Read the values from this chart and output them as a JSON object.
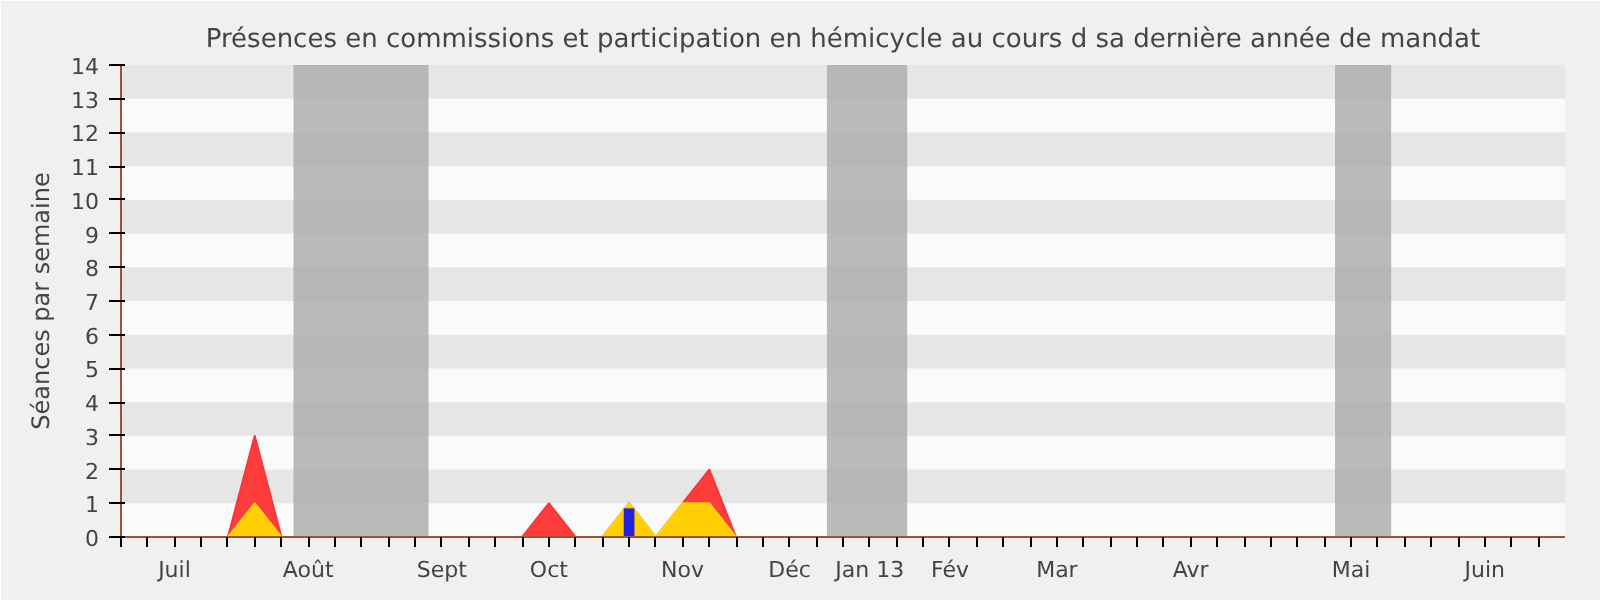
{
  "chart_data": {
    "type": "area",
    "title": "Présences en commissions et participation en hémicycle au cours d sa dernière année de mandat",
    "ylabel": "Séances par semaine",
    "categories": [
      null,
      null,
      "Juil",
      null,
      null,
      null,
      null,
      "Août",
      null,
      null,
      null,
      null,
      "Sept",
      null,
      null,
      null,
      "Oct",
      null,
      null,
      null,
      null,
      "Nov",
      null,
      null,
      null,
      "Déc",
      null,
      null,
      "Jan 13",
      null,
      null,
      "Fév",
      null,
      null,
      null,
      "Mar",
      null,
      null,
      null,
      null,
      "Avr",
      null,
      null,
      null,
      null,
      null,
      "Mai",
      null,
      null,
      null,
      null,
      "Juin",
      null,
      null
    ],
    "series": [
      {
        "color": "#ff3333",
        "values": [
          0,
          0,
          0,
          0,
          0,
          3,
          0,
          0,
          0,
          0,
          0,
          0,
          0,
          0,
          0,
          0,
          1,
          0,
          0,
          1,
          0,
          1,
          2,
          0,
          0,
          0,
          0,
          0,
          0,
          0,
          0,
          0,
          0,
          0,
          0,
          0,
          0,
          0,
          0,
          0,
          0,
          0,
          0,
          0,
          0,
          0,
          0,
          0,
          0,
          0,
          0,
          0,
          0,
          0
        ]
      },
      {
        "color": "#ffd700",
        "values": [
          0,
          0,
          0,
          0,
          0,
          1,
          0,
          0,
          0,
          0,
          0,
          0,
          0,
          0,
          0,
          0,
          0,
          0,
          0,
          1,
          0,
          1,
          1,
          0,
          0,
          0,
          0,
          0,
          0,
          0,
          0,
          0,
          0,
          0,
          0,
          0,
          0,
          0,
          0,
          0,
          0,
          0,
          0,
          0,
          0,
          0,
          0,
          0,
          0,
          0,
          0,
          0,
          0,
          0
        ]
      },
      {
        "type": "bar",
        "color": "#2222dd",
        "values": [
          0,
          0,
          0,
          0,
          0,
          0,
          0,
          0,
          0,
          0,
          0,
          0,
          0,
          0,
          0,
          0,
          0,
          0,
          0,
          0.85,
          0,
          0,
          0,
          0,
          0,
          0,
          0,
          0,
          0,
          0,
          0,
          0,
          0,
          0,
          0,
          0,
          0,
          0,
          0,
          0,
          0,
          0,
          0,
          0,
          0,
          0,
          0,
          0,
          0,
          0,
          0,
          0,
          0,
          0
        ]
      }
    ],
    "ylim": [
      0,
      14
    ],
    "yticks": [
      0,
      1,
      2,
      3,
      4,
      5,
      6,
      7,
      8,
      9,
      10,
      11,
      12,
      13,
      14
    ]
  }
}
